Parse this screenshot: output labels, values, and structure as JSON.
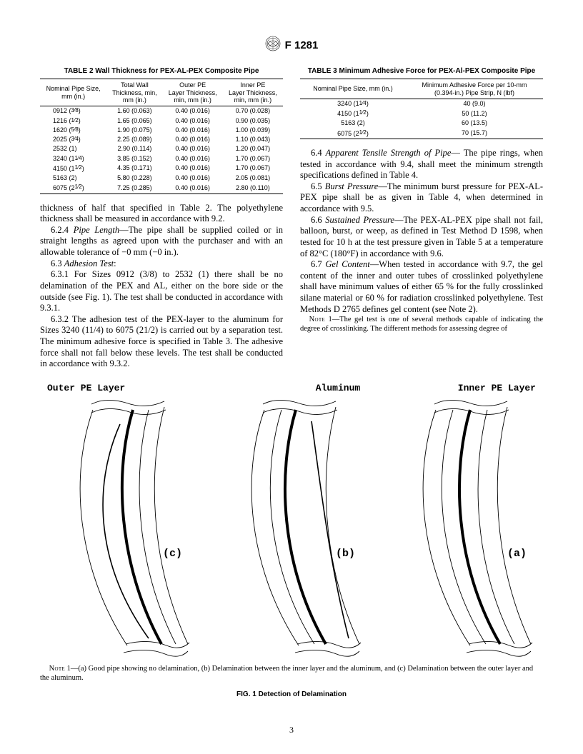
{
  "header": {
    "designation": "F 1281"
  },
  "page_number": "3",
  "table2": {
    "title": "TABLE 2   Wall Thickness for PEX-AL-PEX Composite Pipe",
    "headers": [
      "Nominal Pipe Size,\nmm (in.)",
      "Total Wall\nThickness, min,\nmm (in.)",
      "Outer PE\nLayer Thickness,\nmin, mm (in.)",
      "Inner PE\nLayer Thickness,\nmin, mm (in.)"
    ],
    "rows": [
      [
        "0912 (3⁄8)",
        "1.60 (0.063)",
        "0.40 (0.016)",
        "0.70 (0.028)"
      ],
      [
        "1216 (1⁄2)",
        "1.65 (0.065)",
        "0.40 (0.016)",
        "0.90 (0.035)"
      ],
      [
        "1620 (5⁄8)",
        "1.90 (0.075)",
        "0.40 (0.016)",
        "1.00 (0.039)"
      ],
      [
        "2025 (3⁄4)",
        "2.25 (0.089)",
        "0.40 (0.016)",
        "1.10 (0.043)"
      ],
      [
        "2532 (1)",
        "2.90 (0.114)",
        "0.40 (0.016)",
        "1.20 (0.047)"
      ],
      [
        "3240 (11⁄4)",
        "3.85 (0.152)",
        "0.40 (0.016)",
        "1.70 (0.067)"
      ],
      [
        "4150 (11⁄2)",
        "4.35 (0.171)",
        "0.40 (0.016)",
        "1.70 (0.067)"
      ],
      [
        "5163 (2)",
        "5.80 (0.228)",
        "0.40 (0.016)",
        "2.05 (0.081)"
      ],
      [
        "6075 (21⁄2)",
        "7.25 (0.285)",
        "0.40 (0.016)",
        "2.80 (0.110)"
      ]
    ]
  },
  "table3": {
    "title": "TABLE 3  Minimum Adhesive Force for PEX-Al-PEX Composite Pipe",
    "headers": [
      "Nominal Pipe Size, mm (in.)",
      "Minimum Adhesive Force per 10-mm\n(0.394-in.) Pipe Strip, N (lbf)"
    ],
    "rows": [
      [
        "3240 (11⁄4)",
        "40 (9.0)"
      ],
      [
        "4150 (11⁄2)",
        "50 (11.2)"
      ],
      [
        "5163 (2)",
        "60 (13.5)"
      ],
      [
        "6075 (21⁄2)",
        "70 (15.7)"
      ]
    ]
  },
  "left_body": [
    {
      "type": "p",
      "html": "thickness of half that specified in Table 2. The polyethylene thickness shall be measured in accordance with 9.2.",
      "noindent": true
    },
    {
      "type": "p",
      "html": "6.2.4 <em class='term'>Pipe Length</em>—The pipe shall be supplied coiled or in straight lengths as agreed upon with the purchaser and with an allowable tolerance of −0 mm (−0 in.)."
    },
    {
      "type": "p",
      "html": "6.3 <em class='term'>Adhesion Test</em>:"
    },
    {
      "type": "p",
      "html": "6.3.1 For Sizes 0912 (3/8) to 2532 (1) there shall be no delamination of the PEX and AL, either on the bore side or the outside (see Fig. 1). The test shall be conducted in accordance with 9.3.1."
    },
    {
      "type": "p",
      "html": "6.3.2 The adhesion test of the PEX-layer to the aluminum for Sizes 3240 (11/4) to 6075 (21/2) is carried out by a separation test. The minimum adhesive force is specified in Table 3. The adhesive force shall not fall below these levels. The test shall be conducted in accordance with 9.3.2."
    }
  ],
  "right_body": [
    {
      "type": "p",
      "html": "6.4 <em class='term'>Apparent Tensile Strength of Pipe</em>— The pipe rings, when tested in accordance with 9.4, shall meet the minimum strength specifications defined in Table 4."
    },
    {
      "type": "p",
      "html": "6.5 <em class='term'>Burst Pressure</em>—The minimum burst pressure for PEX-AL-PEX pipe shall be as given in Table 4, when determined in accordance with 9.5."
    },
    {
      "type": "p",
      "html": "6.6 <em class='term'>Sustained Pressure</em>—The PEX-AL-PEX pipe shall not fail, balloon, burst, or weep, as defined in Test Method D 1598, when tested for 10 h at the test pressure given in Table 5 at a temperature of 82°C (180°F) in accordance with 9.6."
    },
    {
      "type": "p",
      "html": "6.7 <em class='term'>Gel Content</em>—When tested in accordance with 9.7, the gel content of the inner and outer tubes of crosslinked polyethylene shall have minimum values of either 65 % for the fully crosslinked silane material or 60 % for radiation crosslinked polyethylene. Test Methods D 2765 defines gel content (see Note 2)."
    },
    {
      "type": "note",
      "html": "<span class='nlabel'>Note</span> 1—The gel test is one of several methods capable of indicating the degree of crosslinking. The different methods for assessing degree of"
    }
  ],
  "figure": {
    "labels": {
      "outer": "Outer PE Layer",
      "mid": "Aluminum",
      "inner": "Inner PE Layer"
    },
    "markers": {
      "a": "(a)",
      "b": "(b)",
      "c": "(c)"
    },
    "note": "1—(a) Good pipe showing no delamination, (b) Delamination between the inner layer and the aluminum, and (c) Delamination between the outer layer and the aluminum.",
    "caption": "FIG. 1 Detection of Delamination"
  }
}
